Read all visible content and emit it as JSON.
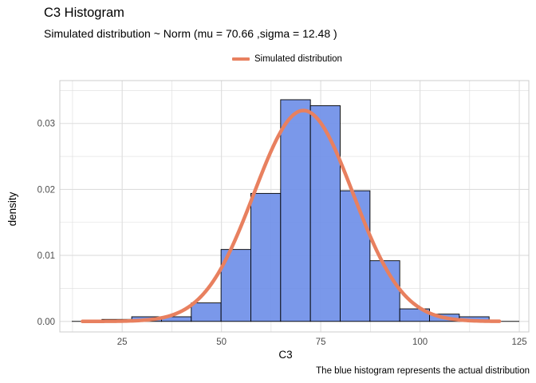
{
  "chart_data": {
    "type": "bar",
    "title": "C3 Histogram",
    "subtitle": "Simulated distribution ~ Norm (mu = 70.66 ,sigma = 12.48 )",
    "caption": "The blue histogram represents the actual distribution",
    "xlabel": "C3",
    "ylabel": "density",
    "xlim": [
      9.3,
      127.4
    ],
    "ylim": [
      -0.0016,
      0.0365
    ],
    "xticks": [
      25,
      50,
      75,
      100,
      125
    ],
    "yticks": [
      0.0,
      0.01,
      0.02,
      0.03
    ],
    "ytick_labels": [
      "0.00",
      "0.01",
      "0.02",
      "0.03"
    ],
    "grid": true,
    "legend_position": "top",
    "bin_width": 7.5,
    "bins": [
      {
        "start": 12.4,
        "end": 19.9,
        "density": 0.0
      },
      {
        "start": 19.9,
        "end": 27.4,
        "density": 0.0003
      },
      {
        "start": 27.4,
        "end": 34.9,
        "density": 0.0007
      },
      {
        "start": 34.9,
        "end": 42.4,
        "density": 0.0007
      },
      {
        "start": 42.4,
        "end": 49.9,
        "density": 0.0028
      },
      {
        "start": 49.9,
        "end": 57.4,
        "density": 0.0109
      },
      {
        "start": 57.4,
        "end": 64.9,
        "density": 0.0194
      },
      {
        "start": 64.9,
        "end": 72.4,
        "density": 0.0336
      },
      {
        "start": 72.4,
        "end": 79.9,
        "density": 0.0327
      },
      {
        "start": 79.9,
        "end": 87.4,
        "density": 0.0198
      },
      {
        "start": 87.4,
        "end": 94.9,
        "density": 0.0092
      },
      {
        "start": 94.9,
        "end": 102.4,
        "density": 0.0019
      },
      {
        "start": 102.4,
        "end": 109.9,
        "density": 0.0011
      },
      {
        "start": 109.9,
        "end": 117.4,
        "density": 0.0007
      },
      {
        "start": 117.4,
        "end": 124.9,
        "density": 0.0
      }
    ],
    "series": [
      {
        "name": "Simulated distribution",
        "type": "line",
        "distribution": "normal",
        "mu": 70.66,
        "sigma": 12.48,
        "x_range": [
          15,
          120
        ]
      }
    ],
    "colors": {
      "bar_fill": "#6F8FE8",
      "bar_stroke": "#000000",
      "curve": "#E8805F",
      "grid": "#DDDDDD",
      "panel_border": "#CCCCCC",
      "tick_text": "#4D4D4D"
    }
  }
}
